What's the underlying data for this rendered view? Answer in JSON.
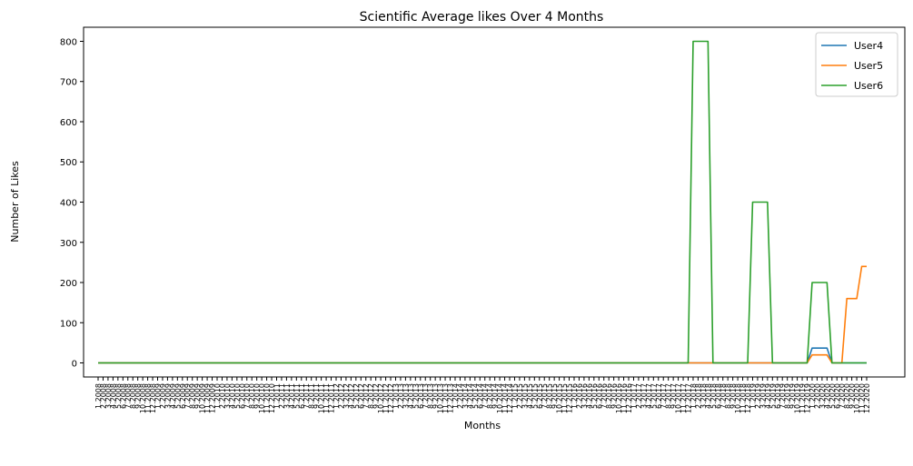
{
  "chart_data": {
    "type": "line",
    "title": "Scientific Average likes Over 4 Months",
    "xlabel": "Months",
    "ylabel": "Number of Likes",
    "ylim": [
      -35,
      835
    ],
    "yticks": [
      0,
      100,
      200,
      300,
      400,
      500,
      600,
      700,
      800
    ],
    "grid": false,
    "legend_position": "top-right",
    "x": [
      "1.2008",
      "2.2008",
      "3.2008",
      "4.2008",
      "5.2008",
      "6.2008",
      "7.2008",
      "8.2008",
      "9.2008",
      "10.2008",
      "11.2008",
      "12.2008",
      "1.2009",
      "2.2009",
      "3.2009",
      "4.2009",
      "5.2009",
      "6.2009",
      "7.2009",
      "8.2009",
      "9.2009",
      "10.2009",
      "11.2009",
      "12.2009",
      "1.2010",
      "2.2010",
      "3.2010",
      "4.2010",
      "5.2010",
      "6.2010",
      "7.2010",
      "8.2010",
      "9.2010",
      "10.2010",
      "11.2010",
      "12.2010",
      "1.2011",
      "2.2011",
      "3.2011",
      "4.2011",
      "5.2011",
      "6.2011",
      "7.2011",
      "8.2011",
      "9.2011",
      "10.2011",
      "11.2011",
      "12.2011",
      "1.2012",
      "2.2012",
      "3.2012",
      "4.2012",
      "5.2012",
      "6.2012",
      "7.2012",
      "8.2012",
      "9.2012",
      "10.2012",
      "11.2012",
      "12.2012",
      "1.2013",
      "2.2013",
      "3.2013",
      "4.2013",
      "5.2013",
      "6.2013",
      "7.2013",
      "8.2013",
      "9.2013",
      "10.2013",
      "11.2013",
      "12.2013",
      "1.2014",
      "2.2014",
      "3.2014",
      "4.2014",
      "5.2014",
      "6.2014",
      "7.2014",
      "8.2014",
      "9.2014",
      "10.2014",
      "11.2014",
      "12.2014",
      "1.2015",
      "2.2015",
      "3.2015",
      "4.2015",
      "5.2015",
      "6.2015",
      "7.2015",
      "8.2015",
      "9.2015",
      "10.2015",
      "11.2015",
      "12.2015",
      "1.2016",
      "2.2016",
      "3.2016",
      "4.2016",
      "5.2016",
      "6.2016",
      "7.2016",
      "8.2016",
      "9.2016",
      "10.2016",
      "11.2016",
      "12.2016",
      "1.2017",
      "2.2017",
      "3.2017",
      "4.2017",
      "5.2017",
      "6.2017",
      "7.2017",
      "8.2017",
      "9.2017",
      "10.2017",
      "11.2017",
      "12.2017",
      "1.2018",
      "2.2018",
      "3.2018",
      "4.2018",
      "5.2018",
      "6.2018",
      "7.2018",
      "8.2018",
      "9.2018",
      "10.2018",
      "11.2018",
      "12.2018",
      "1.2019",
      "2.2019",
      "3.2019",
      "4.2019",
      "5.2019",
      "6.2019",
      "7.2019",
      "8.2019",
      "9.2019",
      "10.2019",
      "11.2019",
      "12.2019",
      "1.2020",
      "2.2020",
      "3.2020",
      "4.2020",
      "5.2020",
      "6.2020",
      "7.2020",
      "8.2020",
      "9.2020",
      "10.2020",
      "11.2020",
      "12.2020"
    ],
    "series": [
      {
        "name": "User4",
        "color": "#1f77b4",
        "values": [
          0,
          0,
          0,
          0,
          0,
          0,
          0,
          0,
          0,
          0,
          0,
          0,
          0,
          0,
          0,
          0,
          0,
          0,
          0,
          0,
          0,
          0,
          0,
          0,
          0,
          0,
          0,
          0,
          0,
          0,
          0,
          0,
          0,
          0,
          0,
          0,
          0,
          0,
          0,
          0,
          0,
          0,
          0,
          0,
          0,
          0,
          0,
          0,
          0,
          0,
          0,
          0,
          0,
          0,
          0,
          0,
          0,
          0,
          0,
          0,
          0,
          0,
          0,
          0,
          0,
          0,
          0,
          0,
          0,
          0,
          0,
          0,
          0,
          0,
          0,
          0,
          0,
          0,
          0,
          0,
          0,
          0,
          0,
          0,
          0,
          0,
          0,
          0,
          0,
          0,
          0,
          0,
          0,
          0,
          0,
          0,
          0,
          0,
          0,
          0,
          0,
          0,
          0,
          0,
          0,
          0,
          0,
          0,
          0,
          0,
          0,
          0,
          0,
          0,
          0,
          0,
          0,
          0,
          0,
          0,
          0,
          0,
          0,
          0,
          0,
          0,
          0,
          0,
          0,
          0,
          0,
          0,
          0,
          0,
          0,
          0,
          0,
          0,
          0,
          0,
          0,
          0,
          0,
          0,
          37,
          37,
          37,
          37,
          0,
          0,
          0,
          0,
          0,
          0,
          0,
          0
        ]
      },
      {
        "name": "User5",
        "color": "#ff7f0e",
        "values": [
          0,
          0,
          0,
          0,
          0,
          0,
          0,
          0,
          0,
          0,
          0,
          0,
          0,
          0,
          0,
          0,
          0,
          0,
          0,
          0,
          0,
          0,
          0,
          0,
          0,
          0,
          0,
          0,
          0,
          0,
          0,
          0,
          0,
          0,
          0,
          0,
          0,
          0,
          0,
          0,
          0,
          0,
          0,
          0,
          0,
          0,
          0,
          0,
          0,
          0,
          0,
          0,
          0,
          0,
          0,
          0,
          0,
          0,
          0,
          0,
          0,
          0,
          0,
          0,
          0,
          0,
          0,
          0,
          0,
          0,
          0,
          0,
          0,
          0,
          0,
          0,
          0,
          0,
          0,
          0,
          0,
          0,
          0,
          0,
          0,
          0,
          0,
          0,
          0,
          0,
          0,
          0,
          0,
          0,
          0,
          0,
          0,
          0,
          0,
          0,
          0,
          0,
          0,
          0,
          0,
          0,
          0,
          0,
          0,
          0,
          0,
          0,
          0,
          0,
          0,
          0,
          0,
          0,
          0,
          0,
          0,
          0,
          0,
          0,
          0,
          0,
          0,
          0,
          0,
          0,
          0,
          0,
          0,
          0,
          0,
          0,
          0,
          0,
          0,
          0,
          0,
          0,
          0,
          0,
          20,
          20,
          20,
          20,
          0,
          0,
          0,
          160,
          160,
          160,
          240,
          240
        ]
      },
      {
        "name": "User6",
        "color": "#2ca02c",
        "values": [
          0,
          0,
          0,
          0,
          0,
          0,
          0,
          0,
          0,
          0,
          0,
          0,
          0,
          0,
          0,
          0,
          0,
          0,
          0,
          0,
          0,
          0,
          0,
          0,
          0,
          0,
          0,
          0,
          0,
          0,
          0,
          0,
          0,
          0,
          0,
          0,
          0,
          0,
          0,
          0,
          0,
          0,
          0,
          0,
          0,
          0,
          0,
          0,
          0,
          0,
          0,
          0,
          0,
          0,
          0,
          0,
          0,
          0,
          0,
          0,
          0,
          0,
          0,
          0,
          0,
          0,
          0,
          0,
          0,
          0,
          0,
          0,
          0,
          0,
          0,
          0,
          0,
          0,
          0,
          0,
          0,
          0,
          0,
          0,
          0,
          0,
          0,
          0,
          0,
          0,
          0,
          0,
          0,
          0,
          0,
          0,
          0,
          0,
          0,
          0,
          0,
          0,
          0,
          0,
          0,
          0,
          0,
          0,
          0,
          0,
          0,
          0,
          0,
          0,
          0,
          0,
          0,
          0,
          0,
          0,
          800,
          800,
          800,
          800,
          0,
          0,
          0,
          0,
          0,
          0,
          0,
          0,
          400,
          400,
          400,
          400,
          0,
          0,
          0,
          0,
          0,
          0,
          0,
          0,
          200,
          200,
          200,
          200,
          0,
          0,
          0,
          0,
          0,
          0,
          0,
          0
        ]
      }
    ]
  }
}
